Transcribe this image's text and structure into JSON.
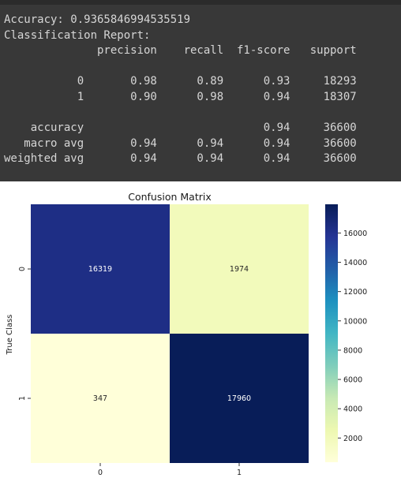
{
  "console": {
    "lines": [
      "Accuracy: 0.9365846994535519",
      "Classification Report:",
      "              precision    recall  f1-score   support",
      "",
      "           0       0.98      0.89      0.93     18293",
      "           1       0.90      0.98      0.94     18307",
      "",
      "    accuracy                           0.94     36600",
      "   macro avg       0.94      0.94      0.94     36600",
      "weighted avg       0.94      0.94      0.94     36600"
    ]
  },
  "chart_data": {
    "type": "heatmap",
    "title": "Confusion Matrix",
    "ylabel": "True Class",
    "xlabel": "",
    "x_categories": [
      "0",
      "1"
    ],
    "y_categories": [
      "0",
      "1"
    ],
    "values": [
      [
        16319,
        1974
      ],
      [
        347,
        17960
      ]
    ],
    "annotations": [
      "16319",
      "1974",
      "347",
      "17960"
    ],
    "colormap": "YlGnBu",
    "vmin": 347,
    "vmax": 17960,
    "colorbar_ticks": [
      2000,
      4000,
      6000,
      8000,
      10000,
      12000,
      14000,
      16000
    ],
    "colorbar_tick_labels": [
      "2000",
      "4000",
      "6000",
      "8000",
      "10000",
      "12000",
      "14000",
      "16000"
    ]
  }
}
